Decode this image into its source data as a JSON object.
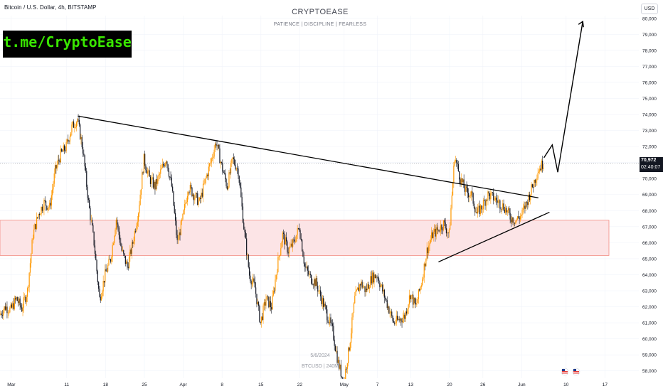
{
  "header": {
    "symbol_title": "Bitcoin / U.S. Dollar, 4h, BITSTAMP",
    "brand_title": "CRYPTOEASE",
    "brand_subtitle": "PATIENCE  |  DISCIPLINE  |  FEARLESS"
  },
  "watermark": {
    "text": "t.me/CryptoEase"
  },
  "footer": {
    "date": "5/6/2024",
    "symbol": "BTCUSD | 240M"
  },
  "price_axis": {
    "currency": "USD",
    "current_price": "70,972",
    "countdown": "02:40:07"
  },
  "colors": {
    "bull": "#ff9800",
    "bear": "#131722",
    "zone_fill": "#fce4e6",
    "zone_border": "#f28b82",
    "trendline": "#000000",
    "grid": "#f0f3fa"
  },
  "chart_data": {
    "type": "candlestick",
    "symbol": "BTCUSD",
    "timeframe": "4h",
    "x_tick_labels": [
      "Mar",
      "11",
      "18",
      "25",
      "Apr",
      "8",
      "15",
      "22",
      "May",
      "7",
      "13",
      "20",
      "26",
      "Jun",
      "10",
      "17"
    ],
    "x_tick_days": [
      1,
      11,
      18,
      25,
      32,
      39,
      46,
      53,
      61,
      67,
      73,
      80,
      86,
      93,
      101,
      108
    ],
    "y_tick_labels": [
      "58,000",
      "59,000",
      "60,000",
      "61,000",
      "62,000",
      "63,000",
      "64,000",
      "65,000",
      "66,000",
      "67,000",
      "68,000",
      "69,000",
      "70,000",
      "71,000",
      "72,000",
      "73,000",
      "74,000",
      "75,000",
      "76,000",
      "77,000",
      "78,000",
      "79,000",
      "80,000"
    ],
    "y_range": [
      57500,
      80300
    ],
    "current_price": 70972,
    "close_path": [
      [
        -1,
        61500
      ],
      [
        0,
        62000
      ],
      [
        1,
        61800
      ],
      [
        2,
        62500
      ],
      [
        3,
        61900
      ],
      [
        4,
        63000
      ],
      [
        5,
        66500
      ],
      [
        6,
        67800
      ],
      [
        7,
        68500
      ],
      [
        8,
        68200
      ],
      [
        9,
        70500
      ],
      [
        10,
        71500
      ],
      [
        11,
        72000
      ],
      [
        12,
        73200
      ],
      [
        13,
        73700
      ],
      [
        14,
        71800
      ],
      [
        15,
        68500
      ],
      [
        16,
        66000
      ],
      [
        17,
        62500
      ],
      [
        18,
        64000
      ],
      [
        19,
        65000
      ],
      [
        20,
        67500
      ],
      [
        21,
        65500
      ],
      [
        22,
        64500
      ],
      [
        23,
        66000
      ],
      [
        24,
        68000
      ],
      [
        25,
        71200
      ],
      [
        26,
        70000
      ],
      [
        27,
        69500
      ],
      [
        28,
        70400
      ],
      [
        29,
        71300
      ],
      [
        30,
        69500
      ],
      [
        31,
        66000
      ],
      [
        32,
        67500
      ],
      [
        33,
        69500
      ],
      [
        34,
        69000
      ],
      [
        35,
        68500
      ],
      [
        36,
        69800
      ],
      [
        37,
        71000
      ],
      [
        38,
        72300
      ],
      [
        39,
        70800
      ],
      [
        40,
        69500
      ],
      [
        41,
        71200
      ],
      [
        42,
        70500
      ],
      [
        43,
        67000
      ],
      [
        44,
        64000
      ],
      [
        45,
        63200
      ],
      [
        46,
        61000
      ],
      [
        47,
        62500
      ],
      [
        48,
        62000
      ],
      [
        49,
        64500
      ],
      [
        50,
        66500
      ],
      [
        51,
        65500
      ],
      [
        52,
        66000
      ],
      [
        53,
        67000
      ],
      [
        54,
        64500
      ],
      [
        55,
        63800
      ],
      [
        56,
        63500
      ],
      [
        57,
        62500
      ],
      [
        58,
        61500
      ],
      [
        59,
        60500
      ],
      [
        60,
        58500
      ],
      [
        61,
        57300
      ],
      [
        62,
        59500
      ],
      [
        63,
        62500
      ],
      [
        64,
        63500
      ],
      [
        65,
        63000
      ],
      [
        66,
        63800
      ],
      [
        67,
        64000
      ],
      [
        68,
        63000
      ],
      [
        69,
        62000
      ],
      [
        70,
        61000
      ],
      [
        71,
        61200
      ],
      [
        72,
        61400
      ],
      [
        73,
        62800
      ],
      [
        74,
        62000
      ],
      [
        75,
        63500
      ],
      [
        76,
        65500
      ],
      [
        77,
        66500
      ],
      [
        78,
        66800
      ],
      [
        79,
        67200
      ],
      [
        80,
        66500
      ],
      [
        81,
        71400
      ],
      [
        82,
        70000
      ],
      [
        83,
        69200
      ],
      [
        84,
        69000
      ],
      [
        85,
        67800
      ],
      [
        86,
        68300
      ],
      [
        87,
        69000
      ],
      [
        88,
        68800
      ],
      [
        89,
        68500
      ],
      [
        90,
        68200
      ],
      [
        91,
        67600
      ],
      [
        92,
        67400
      ],
      [
        93,
        67700
      ],
      [
        94,
        68500
      ],
      [
        95,
        69500
      ],
      [
        96,
        70500
      ],
      [
        97,
        71000
      ]
    ],
    "annotations": {
      "descending_trendline": [
        [
          13,
          73900
        ],
        [
          96,
          68800
        ]
      ],
      "ascending_trendline": [
        [
          78,
          64800
        ],
        [
          98,
          67900
        ]
      ],
      "support_zone": {
        "from": 65200,
        "to": 67400
      },
      "projection_arrow": [
        [
          97,
          71300
        ],
        [
          98.5,
          72100
        ],
        [
          99.5,
          70400
        ],
        [
          104,
          79800
        ]
      ],
      "event_markers": 2
    }
  }
}
